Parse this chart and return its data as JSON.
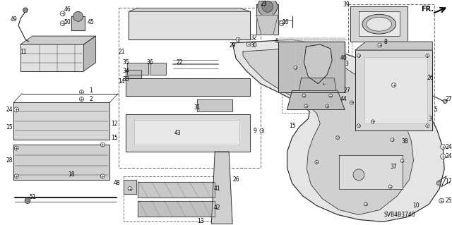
{
  "background_color": "#f5f5f0",
  "diagram_code": "SVB4B3740",
  "figwidth": 6.4,
  "figheight": 3.19,
  "dpi": 100
}
